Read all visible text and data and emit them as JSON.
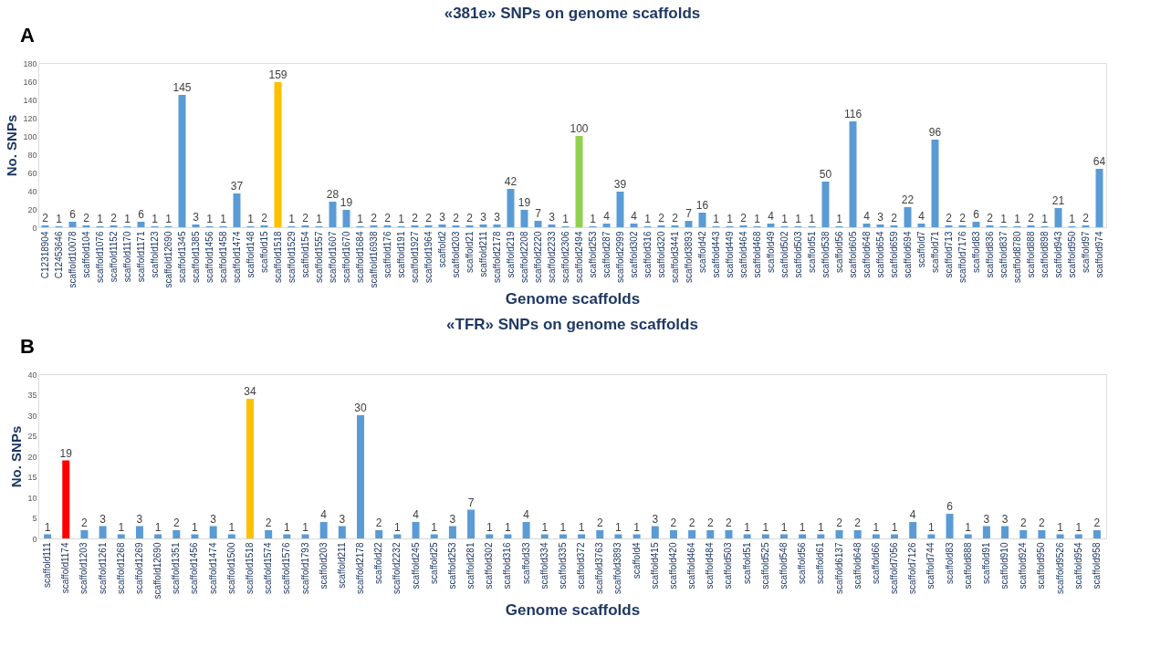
{
  "chart_data": [
    {
      "type": "bar",
      "title": "«381e» SNPs on genome scaffolds",
      "xlabel": "Genome scaffolds",
      "ylabel": "No. SNPs",
      "annotations": [
        "A"
      ],
      "categories": [
        "C12318904",
        "C12453646",
        "scaffold10078",
        "scaffold104",
        "scaffold1076",
        "scaffold1152",
        "scaffold1170",
        "scaffold1171",
        "scaffold123",
        "scaffold12690",
        "scaffold1345",
        "scaffold1385",
        "scaffold1456",
        "scaffold1458",
        "scaffold1474",
        "scaffold148",
        "scaffold15",
        "scaffold1518",
        "scaffold1529",
        "scaffold154",
        "scaffold1557",
        "scaffold1607",
        "scaffold1670",
        "scaffold1684",
        "scaffold16938",
        "scaffold176",
        "scaffold191",
        "scaffold1927",
        "scaffold1964",
        "scaffold2",
        "scaffold203",
        "scaffold21",
        "scaffold211",
        "scaffold2178",
        "scaffold219",
        "scaffold2208",
        "scaffold2220",
        "scaffold2233",
        "scaffold2306",
        "scaffold2494",
        "scaffold253",
        "scaffold287",
        "scaffold2999",
        "scaffold302",
        "scaffold316",
        "scaffold320",
        "scaffold3441",
        "scaffold3893",
        "scaffold42",
        "scaffold443",
        "scaffold449",
        "scaffold464",
        "scaffold468",
        "scaffold49",
        "scaffold502",
        "scaffold503",
        "scaffold51",
        "scaffold538",
        "scaffold56",
        "scaffold605",
        "scaffold648",
        "scaffold654",
        "scaffold659",
        "scaffold694",
        "scaffold7",
        "scaffold71",
        "scaffold713",
        "scaffold7176",
        "scaffold83",
        "scaffold836",
        "scaffold837",
        "scaffold8780",
        "scaffold888",
        "scaffold898",
        "scaffold943",
        "scaffold950",
        "scaffold97",
        "scaffold974"
      ],
      "values": [
        2,
        1,
        6,
        2,
        1,
        2,
        1,
        6,
        1,
        1,
        145,
        3,
        1,
        1,
        37,
        1,
        2,
        159,
        1,
        2,
        1,
        28,
        19,
        1,
        2,
        2,
        1,
        2,
        2,
        3,
        2,
        2,
        3,
        3,
        42,
        19,
        7,
        3,
        1,
        100,
        1,
        4,
        39,
        4,
        1,
        2,
        2,
        7,
        16,
        1,
        1,
        2,
        1,
        4,
        1,
        1,
        1,
        50,
        1,
        116,
        4,
        3,
        2,
        22,
        4,
        96,
        2,
        2,
        6,
        2,
        1,
        1,
        2,
        1,
        21,
        1,
        2,
        64
      ],
      "colors": [
        "#5b9bd5",
        "#5b9bd5",
        "#5b9bd5",
        "#5b9bd5",
        "#5b9bd5",
        "#5b9bd5",
        "#5b9bd5",
        "#5b9bd5",
        "#5b9bd5",
        "#5b9bd5",
        "#5b9bd5",
        "#5b9bd5",
        "#5b9bd5",
        "#5b9bd5",
        "#5b9bd5",
        "#5b9bd5",
        "#5b9bd5",
        "#ffc000",
        "#5b9bd5",
        "#5b9bd5",
        "#5b9bd5",
        "#5b9bd5",
        "#5b9bd5",
        "#5b9bd5",
        "#5b9bd5",
        "#5b9bd5",
        "#5b9bd5",
        "#5b9bd5",
        "#5b9bd5",
        "#5b9bd5",
        "#5b9bd5",
        "#5b9bd5",
        "#5b9bd5",
        "#5b9bd5",
        "#5b9bd5",
        "#5b9bd5",
        "#5b9bd5",
        "#5b9bd5",
        "#5b9bd5",
        "#92d050",
        "#5b9bd5",
        "#5b9bd5",
        "#5b9bd5",
        "#5b9bd5",
        "#5b9bd5",
        "#5b9bd5",
        "#5b9bd5",
        "#5b9bd5",
        "#5b9bd5",
        "#5b9bd5",
        "#5b9bd5",
        "#5b9bd5",
        "#5b9bd5",
        "#5b9bd5",
        "#5b9bd5",
        "#5b9bd5",
        "#5b9bd5",
        "#5b9bd5",
        "#5b9bd5",
        "#5b9bd5",
        "#5b9bd5",
        "#5b9bd5",
        "#5b9bd5",
        "#5b9bd5",
        "#5b9bd5",
        "#5b9bd5",
        "#5b9bd5",
        "#5b9bd5",
        "#5b9bd5",
        "#5b9bd5",
        "#5b9bd5",
        "#5b9bd5",
        "#5b9bd5",
        "#5b9bd5",
        "#5b9bd5",
        "#5b9bd5",
        "#5b9bd5",
        "#5b9bd5"
      ],
      "ylim": [
        0,
        180
      ],
      "yticks": [
        0,
        20,
        40,
        60,
        80,
        100,
        120,
        140,
        160,
        180
      ],
      "data_labels": true
    },
    {
      "type": "bar",
      "title": "«TFR» SNPs on genome scaffolds",
      "xlabel": "Genome scaffolds",
      "ylabel": "No. SNPs",
      "annotations": [
        "B"
      ],
      "categories": [
        "scaffold111",
        "scaffold1174",
        "scaffold1203",
        "scaffold1261",
        "scaffold1268",
        "scaffold1269",
        "scaffold12690",
        "scaffold1351",
        "scaffold1456",
        "scaffold1474",
        "scaffold1500",
        "scaffold1518",
        "scaffold1574",
        "scaffold1576",
        "scaffold1793",
        "scaffold203",
        "scaffold211",
        "scaffold2178",
        "scaffold22",
        "scaffold2232",
        "scaffold245",
        "scaffold25",
        "scaffold253",
        "scaffold281",
        "scaffold302",
        "scaffold316",
        "scaffold33",
        "scaffold334",
        "scaffold335",
        "scaffold372",
        "scaffold3763",
        "scaffold3893",
        "scaffold4",
        "scaffold415",
        "scaffold420",
        "scaffold464",
        "scaffold484",
        "scaffold503",
        "scaffold51",
        "scaffold525",
        "scaffold548",
        "scaffold56",
        "scaffold61",
        "scaffold6137",
        "scaffold648",
        "scaffold66",
        "scaffold7056",
        "scaffold7126",
        "scaffold744",
        "scaffold83",
        "scaffold888",
        "scaffold91",
        "scaffold910",
        "scaffold924",
        "scaffold950",
        "scaffold9526",
        "scaffold954",
        "scaffold958"
      ],
      "values": [
        1,
        19,
        2,
        3,
        1,
        3,
        1,
        2,
        1,
        3,
        1,
        34,
        2,
        1,
        1,
        4,
        3,
        30,
        2,
        1,
        4,
        1,
        3,
        7,
        1,
        1,
        4,
        1,
        1,
        1,
        2,
        1,
        1,
        3,
        2,
        2,
        2,
        2,
        1,
        1,
        1,
        1,
        1,
        2,
        2,
        1,
        1,
        4,
        1,
        6,
        1,
        3,
        3,
        2,
        2,
        1,
        1,
        2
      ],
      "colors": [
        "#5b9bd5",
        "#ff0000",
        "#5b9bd5",
        "#5b9bd5",
        "#5b9bd5",
        "#5b9bd5",
        "#5b9bd5",
        "#5b9bd5",
        "#5b9bd5",
        "#5b9bd5",
        "#5b9bd5",
        "#ffc000",
        "#5b9bd5",
        "#5b9bd5",
        "#5b9bd5",
        "#5b9bd5",
        "#5b9bd5",
        "#5b9bd5",
        "#5b9bd5",
        "#5b9bd5",
        "#5b9bd5",
        "#5b9bd5",
        "#5b9bd5",
        "#5b9bd5",
        "#5b9bd5",
        "#5b9bd5",
        "#5b9bd5",
        "#5b9bd5",
        "#5b9bd5",
        "#5b9bd5",
        "#5b9bd5",
        "#5b9bd5",
        "#5b9bd5",
        "#5b9bd5",
        "#5b9bd5",
        "#5b9bd5",
        "#5b9bd5",
        "#5b9bd5",
        "#5b9bd5",
        "#5b9bd5",
        "#5b9bd5",
        "#5b9bd5",
        "#5b9bd5",
        "#5b9bd5",
        "#5b9bd5",
        "#5b9bd5",
        "#5b9bd5",
        "#5b9bd5",
        "#5b9bd5",
        "#5b9bd5",
        "#5b9bd5",
        "#5b9bd5",
        "#5b9bd5",
        "#5b9bd5",
        "#5b9bd5",
        "#5b9bd5",
        "#5b9bd5",
        "#5b9bd5"
      ],
      "ylim": [
        0,
        40
      ],
      "yticks": [
        0,
        5,
        10,
        15,
        20,
        25,
        30,
        35,
        40
      ],
      "data_labels": true
    }
  ]
}
